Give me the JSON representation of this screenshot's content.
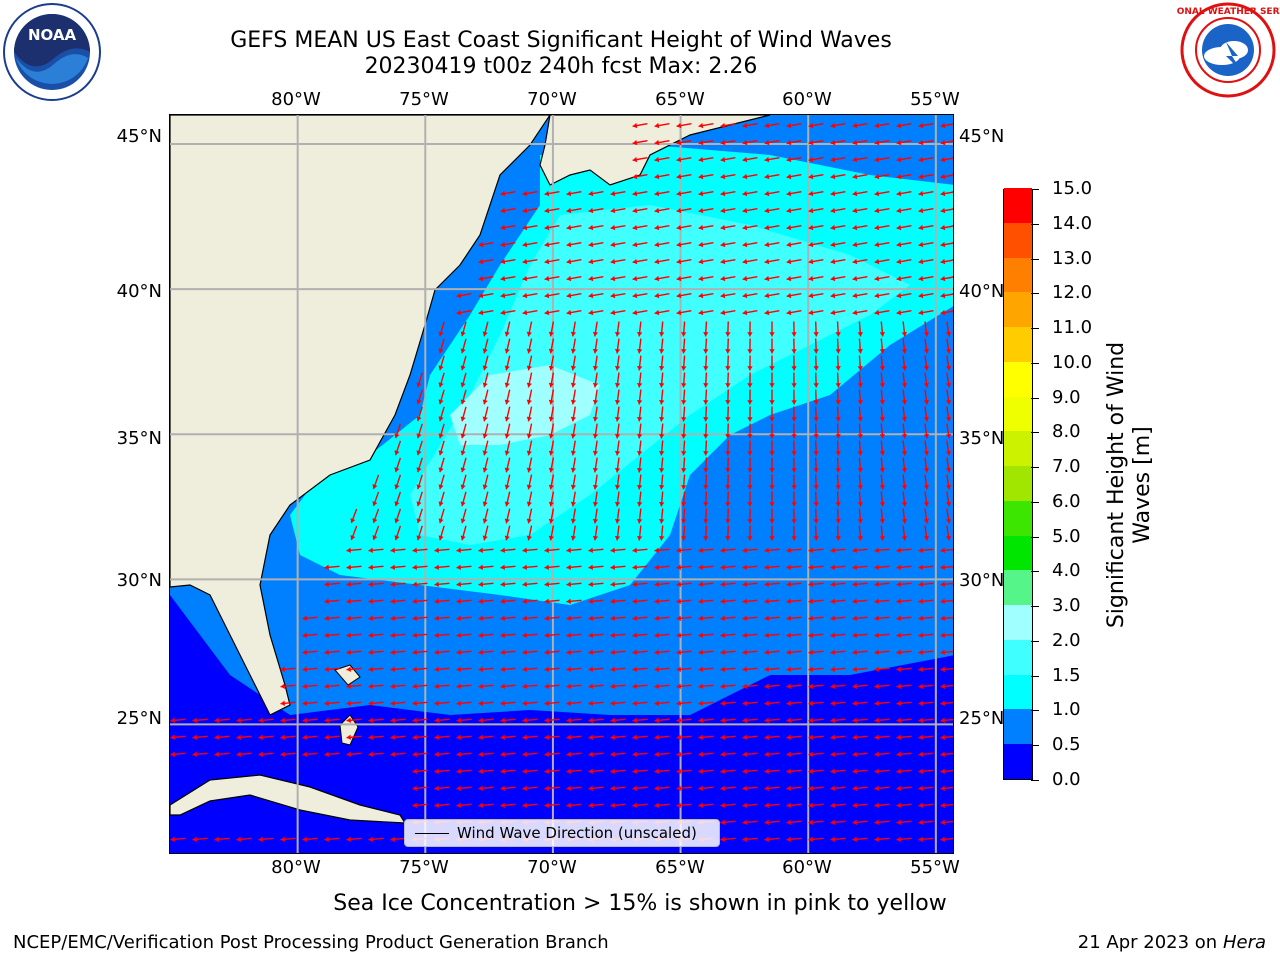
{
  "title": {
    "line1": "GEFS MEAN US East Coast Significant Height of Wind Waves",
    "line2": "20230419 t00z 240h fcst   Max: 2.26"
  },
  "map": {
    "lon_ticks": [
      "80°W",
      "75°W",
      "70°W",
      "65°W",
      "60°W",
      "55°W"
    ],
    "lat_ticks": [
      "45°N",
      "40°N",
      "35°N",
      "30°N",
      "25°N"
    ],
    "lon_values": [
      -80,
      -75,
      -70,
      -65,
      -60,
      -55
    ],
    "lat_values": [
      45,
      40,
      35,
      30,
      25
    ],
    "extent": {
      "lon_min": -85,
      "lon_max": -54.25,
      "lat_min": 20.5,
      "lat_max": 46
    },
    "land_color": "#efeedd",
    "grid_color": "#b0b0b0",
    "arrow_color": "#ff0000",
    "legend_label": "Wind Wave Direction (unscaled)"
  },
  "colorbar": {
    "title_line1": "Significant Height of Wind",
    "title_line2": "Waves [m]",
    "levels": [
      "0.0",
      "0.5",
      "1.0",
      "1.5",
      "2.0",
      "3.0",
      "4.0",
      "5.0",
      "6.0",
      "7.0",
      "8.0",
      "9.0",
      "10.0",
      "11.0",
      "12.0",
      "13.0",
      "14.0",
      "15.0"
    ],
    "colors": [
      "#0000ff",
      "#0080ff",
      "#00ffff",
      "#40ffff",
      "#a0ffff",
      "#55f58a",
      "#00e600",
      "#3ce600",
      "#a0e600",
      "#ccf200",
      "#f0ff00",
      "#ffff00",
      "#ffcc00",
      "#ffa500",
      "#ff8000",
      "#ff5000",
      "#ff0000"
    ]
  },
  "caption": "Sea Ice Concentration > 15% is shown in pink to yellow",
  "footer": {
    "left": "NCEP/EMC/Verification Post Processing Product Generation Branch",
    "right_prefix": "21 Apr 2023 on ",
    "right_host": "Hera"
  },
  "logos": {
    "noaa_text": "NOAA",
    "nws_text": "NATIONAL WEATHER SERVICE"
  }
}
